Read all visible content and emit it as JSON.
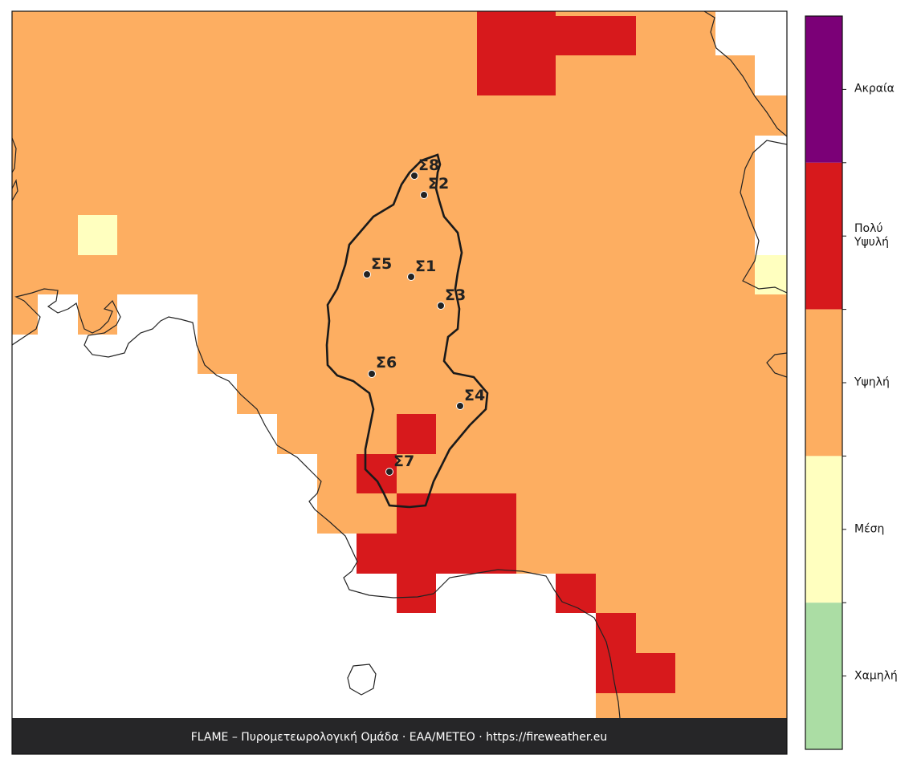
{
  "map": {
    "stations": [
      {
        "label": "Σ8"
      },
      {
        "label": "Σ2"
      },
      {
        "label": "Σ5"
      },
      {
        "label": "Σ1"
      },
      {
        "label": "Σ3"
      },
      {
        "label": "Σ6"
      },
      {
        "label": "Σ4"
      },
      {
        "label": "Σ7"
      }
    ],
    "footer": "FLAME – Πυρομετεωρολογική Ομάδα · ΕΑΑ/METEO · https://fireweather.eu"
  },
  "legend": {
    "levels": [
      {
        "label": "Ακραία",
        "color": "#7b0077"
      },
      {
        "label": "Πολύ\nΥψυλή",
        "color": "#d7191c"
      },
      {
        "label": "Υψηλή",
        "color": "#fdae61"
      },
      {
        "label": "Μέση",
        "color": "#ffffbf"
      },
      {
        "label": "Χαμηλή",
        "color": "#abdda4"
      }
    ]
  }
}
